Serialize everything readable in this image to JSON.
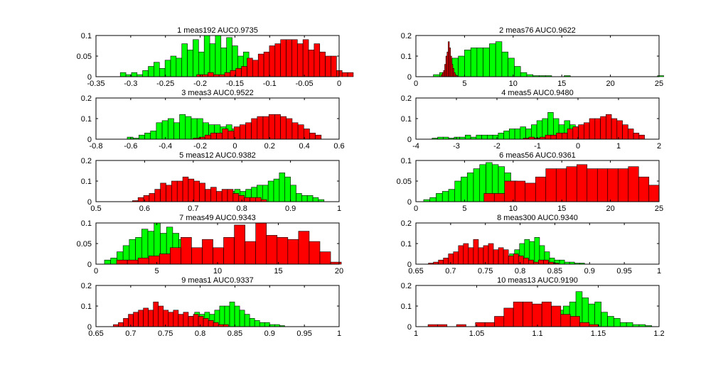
{
  "colors": {
    "green": "#00ff00",
    "red": "#ff0000",
    "axes": "#000000"
  },
  "chart_data": [
    {
      "type": "bar",
      "title": "1 meas192 AUC0.9735",
      "xlim": [
        -0.35,
        0
      ],
      "ylim": [
        0,
        0.1
      ],
      "xticks": [
        "-0.35",
        "-0.3",
        "-0.25",
        "-0.2",
        "-0.15",
        "-0.1",
        "-0.05",
        "0"
      ],
      "xtick_values": [
        -0.35,
        -0.3,
        -0.25,
        -0.2,
        -0.15,
        -0.1,
        -0.05,
        0
      ],
      "yticks": [
        "0",
        "0.05",
        "0.1"
      ],
      "ytick_values": [
        0,
        0.05,
        0.1
      ],
      "series": [
        {
          "color": "green",
          "bin_start": -0.315,
          "bin_width": 0.00805,
          "values": [
            0.01,
            0.005,
            0.01,
            0.005,
            0.015,
            0.025,
            0.035,
            0.02,
            0.04,
            0.05,
            0.045,
            0.08,
            0.065,
            0.09,
            0.06,
            0.1,
            0.08,
            0.1,
            0.07,
            0.095,
            0.075,
            0.05,
            0.06,
            0.035,
            0.03,
            0.025,
            0.015,
            0.02,
            0.01,
            0.005,
            0.005,
            0.005
          ]
        },
        {
          "color": "red",
          "bin_start": -0.205,
          "bin_width": 0.00805,
          "values": [
            0.005,
            0.005,
            0.01,
            0.005,
            0.005,
            0.01,
            0.015,
            0.02,
            0.025,
            0.045,
            0.04,
            0.055,
            0.06,
            0.075,
            0.08,
            0.09,
            0.09,
            0.09,
            0.08,
            0.09,
            0.065,
            0.08,
            0.06,
            0.05,
            0.05,
            0.015,
            0.01,
            0.01
          ]
        }
      ]
    },
    {
      "type": "bar",
      "title": "2 meas76 AUC0.9622",
      "xlim": [
        0,
        25
      ],
      "ylim": [
        0,
        0.2
      ],
      "xticks": [
        "0",
        "5",
        "10",
        "15",
        "20",
        "25"
      ],
      "xtick_values": [
        0,
        5,
        10,
        15,
        20,
        25
      ],
      "yticks": [
        "0",
        "0.1",
        "0.2"
      ],
      "ytick_values": [
        0,
        0.1,
        0.2
      ],
      "series": [
        {
          "color": "green",
          "bin_start": 1.8,
          "bin_width": 0.64,
          "values": [
            0.01,
            0.02,
            0.03,
            0.09,
            0.1,
            0.13,
            0.14,
            0.14,
            0.14,
            0.16,
            0.17,
            0.12,
            0.09,
            0.05,
            0.02,
            0.01,
            0.005,
            0.005,
            0.005,
            0,
            0,
            0.005,
            0,
            0,
            0,
            0,
            0,
            0,
            0,
            0,
            0,
            0,
            0,
            0,
            0,
            0,
            0.005
          ]
        },
        {
          "color": "red",
          "bin_start": 2.6,
          "bin_width": 0.12,
          "values": [
            0.01,
            0.02,
            0.03,
            0.06,
            0.1,
            0.12,
            0.17,
            0.14,
            0.1,
            0.06,
            0.04,
            0.02,
            0.01,
            0.005
          ]
        }
      ]
    },
    {
      "type": "bar",
      "title": "3 meas3 AUC0.9522",
      "xlim": [
        -0.8,
        0.6
      ],
      "ylim": [
        0,
        0.2
      ],
      "xticks": [
        "-0.8",
        "-0.6",
        "-0.4",
        "-0.2",
        "0",
        "0.2",
        "0.4",
        "0.6"
      ],
      "xtick_values": [
        -0.8,
        -0.6,
        -0.4,
        -0.2,
        0,
        0.2,
        0.4,
        0.6
      ],
      "yticks": [
        "0",
        "0.1",
        "0.2"
      ],
      "ytick_values": [
        0,
        0.1,
        0.2
      ],
      "series": [
        {
          "color": "green",
          "bin_start": -0.62,
          "bin_width": 0.0335,
          "values": [
            0.01,
            0.005,
            0.02,
            0.03,
            0.04,
            0.08,
            0.09,
            0.1,
            0.08,
            0.12,
            0.11,
            0.1,
            0.1,
            0.08,
            0.07,
            0.07,
            0.06,
            0.07,
            0.05,
            0.05,
            0.04,
            0.03,
            0.02,
            0.02,
            0.01,
            0.01,
            0.005
          ]
        },
        {
          "color": "red",
          "bin_start": -0.24,
          "bin_width": 0.0335,
          "values": [
            0.005,
            0.01,
            0.02,
            0.03,
            0.03,
            0.05,
            0.04,
            0.06,
            0.07,
            0.08,
            0.1,
            0.11,
            0.11,
            0.12,
            0.12,
            0.11,
            0.1,
            0.08,
            0.07,
            0.05,
            0.03,
            0.02
          ]
        }
      ]
    },
    {
      "type": "bar",
      "title": "4 meas5 AUC0.9480",
      "xlim": [
        -4,
        2
      ],
      "ylim": [
        0,
        0.2
      ],
      "xticks": [
        "-4",
        "-3",
        "-2",
        "-1",
        "0",
        "1",
        "2"
      ],
      "xtick_values": [
        -4,
        -3,
        -2,
        -1,
        0,
        1,
        2
      ],
      "yticks": [
        "0",
        "0.1",
        "0.2"
      ],
      "ytick_values": [
        0,
        0.1,
        0.2
      ],
      "series": [
        {
          "color": "green",
          "bin_start": -3.6,
          "bin_width": 0.136,
          "values": [
            0.005,
            0.01,
            0.01,
            0.005,
            0.01,
            0.01,
            0.02,
            0.01,
            0.02,
            0.02,
            0.02,
            0.02,
            0.03,
            0.04,
            0.05,
            0.05,
            0.06,
            0.05,
            0.07,
            0.09,
            0.1,
            0.13,
            0.1,
            0.07,
            0.09,
            0.07,
            0.06,
            0.07,
            0.05,
            0.04,
            0.04,
            0.03,
            0.02
          ]
        },
        {
          "color": "red",
          "bin_start": -1.35,
          "bin_width": 0.136,
          "values": [
            0.005,
            0.01,
            0.005,
            0.01,
            0.02,
            0.02,
            0.03,
            0.03,
            0.05,
            0.06,
            0.07,
            0.08,
            0.1,
            0.1,
            0.11,
            0.12,
            0.1,
            0.09,
            0.07,
            0.05,
            0.03,
            0.02
          ]
        }
      ]
    },
    {
      "type": "bar",
      "title": "5 meas12 AUC0.9382",
      "xlim": [
        0.5,
        1
      ],
      "ylim": [
        0,
        0.2
      ],
      "xticks": [
        "0.5",
        "0.6",
        "0.7",
        "0.8",
        "0.9",
        "1"
      ],
      "xtick_values": [
        0.5,
        0.6,
        0.7,
        0.8,
        0.9,
        1
      ],
      "yticks": [
        "0",
        "0.1",
        "0.2"
      ],
      "ytick_values": [
        0,
        0.1,
        0.2
      ],
      "series": [
        {
          "color": "green",
          "bin_start": 0.67,
          "bin_width": 0.0115,
          "values": [
            0.005,
            0.01,
            0.01,
            0.01,
            0.02,
            0.02,
            0.03,
            0.04,
            0.05,
            0.05,
            0.06,
            0.05,
            0.06,
            0.07,
            0.08,
            0.08,
            0.1,
            0.11,
            0.14,
            0.12,
            0.08,
            0.04,
            0.03,
            0.03,
            0.02,
            0.01
          ]
        },
        {
          "color": "red",
          "bin_start": 0.575,
          "bin_width": 0.0115,
          "values": [
            0.005,
            0.02,
            0.03,
            0.04,
            0.06,
            0.09,
            0.08,
            0.1,
            0.1,
            0.12,
            0.11,
            0.1,
            0.09,
            0.06,
            0.07,
            0.05,
            0.06,
            0.06,
            0.04,
            0.03,
            0.02,
            0.02,
            0.02,
            0.01
          ]
        }
      ]
    },
    {
      "type": "bar",
      "title": "6 meas56 AUC0.9361",
      "xlim": [
        0,
        25
      ],
      "ylim": [
        0,
        0.1
      ],
      "xticks": [
        "0",
        "5",
        "10",
        "15",
        "20",
        "25"
      ],
      "xtick_values": [
        0,
        5,
        10,
        15,
        20,
        25
      ],
      "yticks": [
        "0",
        "0.05",
        "0.1"
      ],
      "ytick_values": [
        0,
        0.05,
        0.1
      ],
      "series": [
        {
          "color": "green",
          "bin_start": 0.8,
          "bin_width": 0.64,
          "values": [
            0.005,
            0.01,
            0.02,
            0.025,
            0.03,
            0.05,
            0.06,
            0.07,
            0.08,
            0.09,
            0.095,
            0.09,
            0.085,
            0.07,
            0.05,
            0.04,
            0.025,
            0.02,
            0.015,
            0.01,
            0.005
          ]
        },
        {
          "color": "red",
          "bin_start": 7.0,
          "bin_width": 1.06,
          "values": [
            0.02,
            0.02,
            0.05,
            0.05,
            0.045,
            0.06,
            0.08,
            0.08,
            0.085,
            0.09,
            0.08,
            0.08,
            0.08,
            0.08,
            0.085,
            0.06,
            0.04
          ]
        }
      ]
    },
    {
      "type": "bar",
      "title": "7 meas49 AUC0.9343",
      "xlim": [
        0,
        20
      ],
      "ylim": [
        0,
        0.1
      ],
      "xticks": [
        "0",
        "5",
        "10",
        "15",
        "20"
      ],
      "xtick_values": [
        0,
        5,
        10,
        15,
        20
      ],
      "yticks": [
        "0",
        "0.05",
        "0.1"
      ],
      "ytick_values": [
        0,
        0.05,
        0.1
      ],
      "series": [
        {
          "color": "green",
          "bin_start": 0.7,
          "bin_width": 0.51,
          "values": [
            0.01,
            0.015,
            0.03,
            0.045,
            0.06,
            0.065,
            0.085,
            0.08,
            0.1,
            0.075,
            0.09,
            0.075,
            0.06,
            0.05,
            0.03,
            0.03,
            0.025,
            0.02,
            0.01,
            0.005,
            0.005
          ]
        },
        {
          "color": "red",
          "bin_start": 1.7,
          "bin_width": 0.88,
          "values": [
            0.01,
            0.01,
            0.015,
            0.02,
            0.025,
            0.04,
            0.065,
            0.04,
            0.06,
            0.04,
            0.065,
            0.095,
            0.055,
            0.1,
            0.07,
            0.065,
            0.06,
            0.08,
            0.055,
            0.03,
            0.005
          ]
        }
      ]
    },
    {
      "type": "bar",
      "title": "8 meas300 AUC0.9340",
      "xlim": [
        0.65,
        1
      ],
      "ylim": [
        0,
        0.2
      ],
      "xticks": [
        "0.65",
        "0.7",
        "0.75",
        "0.8",
        "0.85",
        "0.9",
        "0.95",
        "1"
      ],
      "xtick_values": [
        0.65,
        0.7,
        0.75,
        0.8,
        0.85,
        0.9,
        0.95,
        1
      ],
      "yticks": [
        "0",
        "0.1",
        "0.2"
      ],
      "ytick_values": [
        0,
        0.1,
        0.2
      ],
      "series": [
        {
          "color": "green",
          "bin_start": 0.72,
          "bin_width": 0.0072,
          "values": [
            0.005,
            0.01,
            0.02,
            0.03,
            0.04,
            0.05,
            0.05,
            0.05,
            0.04,
            0.05,
            0.07,
            0.1,
            0.12,
            0.11,
            0.13,
            0.09,
            0.06,
            0.03,
            0.02,
            0.02,
            0.01,
            0.01,
            0.005,
            0.005
          ]
        },
        {
          "color": "red",
          "bin_start": 0.668,
          "bin_width": 0.0072,
          "values": [
            0.005,
            0.01,
            0.02,
            0.03,
            0.05,
            0.06,
            0.09,
            0.1,
            0.08,
            0.12,
            0.08,
            0.09,
            0.1,
            0.07,
            0.08,
            0.07,
            0.04,
            0.05,
            0.04,
            0.03,
            0.02,
            0.01,
            0.02,
            0.02,
            0.01,
            0.005
          ]
        }
      ]
    },
    {
      "type": "bar",
      "title": "9 meas1 AUC0.9337",
      "xlim": [
        0.65,
        1
      ],
      "ylim": [
        0,
        0.2
      ],
      "xticks": [
        "0.65",
        "0.7",
        "0.75",
        "0.8",
        "0.85",
        "0.9",
        "0.95",
        "1"
      ],
      "xtick_values": [
        0.65,
        0.7,
        0.75,
        0.8,
        0.85,
        0.9,
        0.95,
        1
      ],
      "yticks": [
        "0",
        "0.1",
        "0.2"
      ],
      "ytick_values": [
        0,
        0.1,
        0.2
      ],
      "series": [
        {
          "color": "green",
          "bin_start": 0.72,
          "bin_width": 0.0072,
          "values": [
            0.005,
            0.01,
            0.02,
            0.02,
            0.03,
            0.04,
            0.05,
            0.05,
            0.04,
            0.05,
            0.07,
            0.06,
            0.07,
            0.06,
            0.08,
            0.1,
            0.1,
            0.12,
            0.1,
            0.08,
            0.06,
            0.04,
            0.03,
            0.02,
            0.02,
            0.01,
            0.01,
            0.005
          ]
        },
        {
          "color": "red",
          "bin_start": 0.675,
          "bin_width": 0.0072,
          "values": [
            0.01,
            0.02,
            0.04,
            0.06,
            0.07,
            0.08,
            0.09,
            0.08,
            0.12,
            0.1,
            0.08,
            0.07,
            0.08,
            0.06,
            0.07,
            0.05,
            0.06,
            0.05,
            0.04,
            0.03,
            0.02,
            0.01,
            0.01
          ]
        }
      ]
    },
    {
      "type": "bar",
      "title": "10 meas13 AUC0.9190",
      "xlim": [
        1,
        1.2
      ],
      "ylim": [
        0,
        0.2
      ],
      "xticks": [
        "1",
        "1.05",
        "1.1",
        "1.15",
        "1.2"
      ],
      "xtick_values": [
        1,
        1.05,
        1.1,
        1.15,
        1.2
      ],
      "yticks": [
        "0",
        "0.1",
        "0.2"
      ],
      "ytick_values": [
        0,
        0.1,
        0.2
      ],
      "series": [
        {
          "color": "green",
          "bin_start": 1.09,
          "bin_width": 0.0052,
          "values": [
            0.005,
            0.01,
            0.02,
            0.03,
            0.05,
            0.08,
            0.1,
            0.12,
            0.17,
            0.14,
            0.11,
            0.12,
            0.07,
            0.05,
            0.04,
            0.02,
            0.02,
            0.01,
            0.01,
            0.005
          ]
        },
        {
          "color": "red",
          "bin_start": 1.01,
          "bin_width": 0.0078,
          "values": [
            0.01,
            0.01,
            0,
            0.01,
            0,
            0.02,
            0.02,
            0.05,
            0.09,
            0.12,
            0.12,
            0.11,
            0.12,
            0.1,
            0.06,
            0.05,
            0.02,
            0.01
          ]
        }
      ]
    }
  ]
}
